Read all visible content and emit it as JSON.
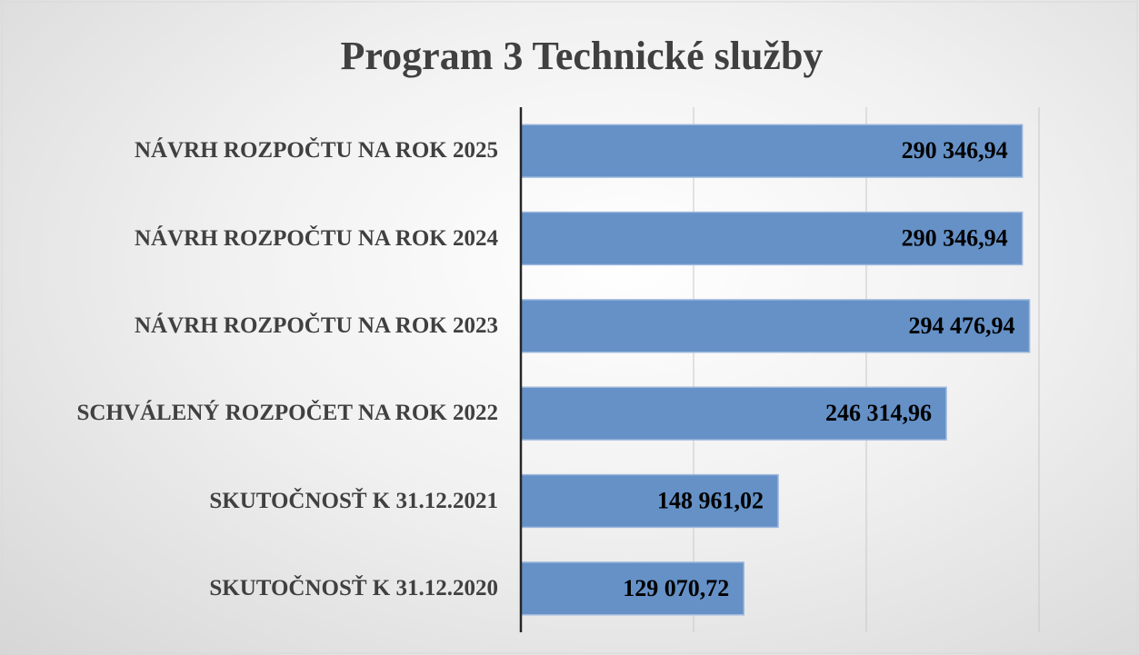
{
  "chart_data": {
    "type": "bar",
    "orientation": "horizontal",
    "title": "Program 3 Technické služby",
    "categories": [
      "NÁVRH ROZPOČTU NA ROK 2025",
      "NÁVRH ROZPOČTU NA ROK 2024",
      "NÁVRH ROZPOČTU NA ROK 2023",
      "SCHVÁLENÝ ROZPOČET NA ROK 2022",
      "SKUTOČNOSŤ K 31.12.2021",
      "SKUTOČNOSŤ K 31.12.2020"
    ],
    "values": [
      290346.94,
      290346.94,
      294476.94,
      246314.96,
      148961.02,
      129070.72
    ],
    "value_labels": [
      "290 346,94",
      "290 346,94",
      "294 476,94",
      "246 314,96",
      "148 961,02",
      "129 070,72"
    ],
    "color": "#6591c7",
    "xlim": [
      0,
      300000
    ],
    "xticks": [
      0,
      100000,
      200000,
      300000
    ],
    "grid": true
  }
}
